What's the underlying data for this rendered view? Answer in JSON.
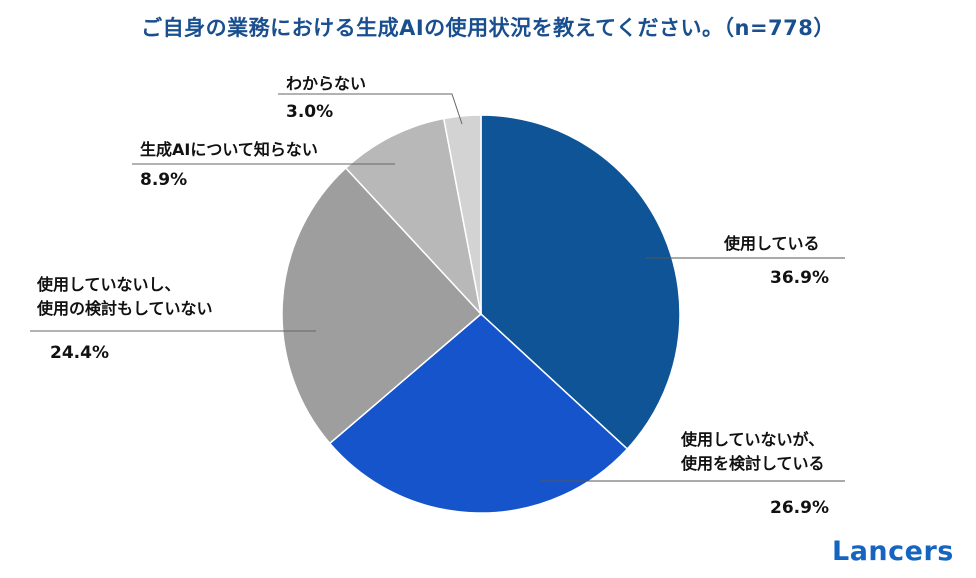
{
  "title": "ご自身の業務における生成AIの使用状況を教えてください。（n=778）",
  "logo": "Lancers",
  "chart_data": {
    "type": "pie",
    "title": "ご自身の業務における生成AIの使用状況を教えてください。（n=778）",
    "start": "12 o'clock",
    "direction": "clockwise",
    "slices": [
      {
        "label": "使用している",
        "value": 36.9,
        "pct_label": "36.9%",
        "color": "#0e5496"
      },
      {
        "label": "使用していないが、\n使用を検討している",
        "value": 26.9,
        "pct_label": "26.9%",
        "color": "#1654cc"
      },
      {
        "label": "使用していないし、\n使用の検討もしていない",
        "value": 24.4,
        "pct_label": "24.4%",
        "color": "#9e9e9e"
      },
      {
        "label": "生成AIについて知らない",
        "value": 8.9,
        "pct_label": "8.9%",
        "color": "#b8b8b8"
      },
      {
        "label": "わからない",
        "value": 3.0,
        "pct_label": "3.0%",
        "color": "#d3d3d3"
      }
    ]
  }
}
